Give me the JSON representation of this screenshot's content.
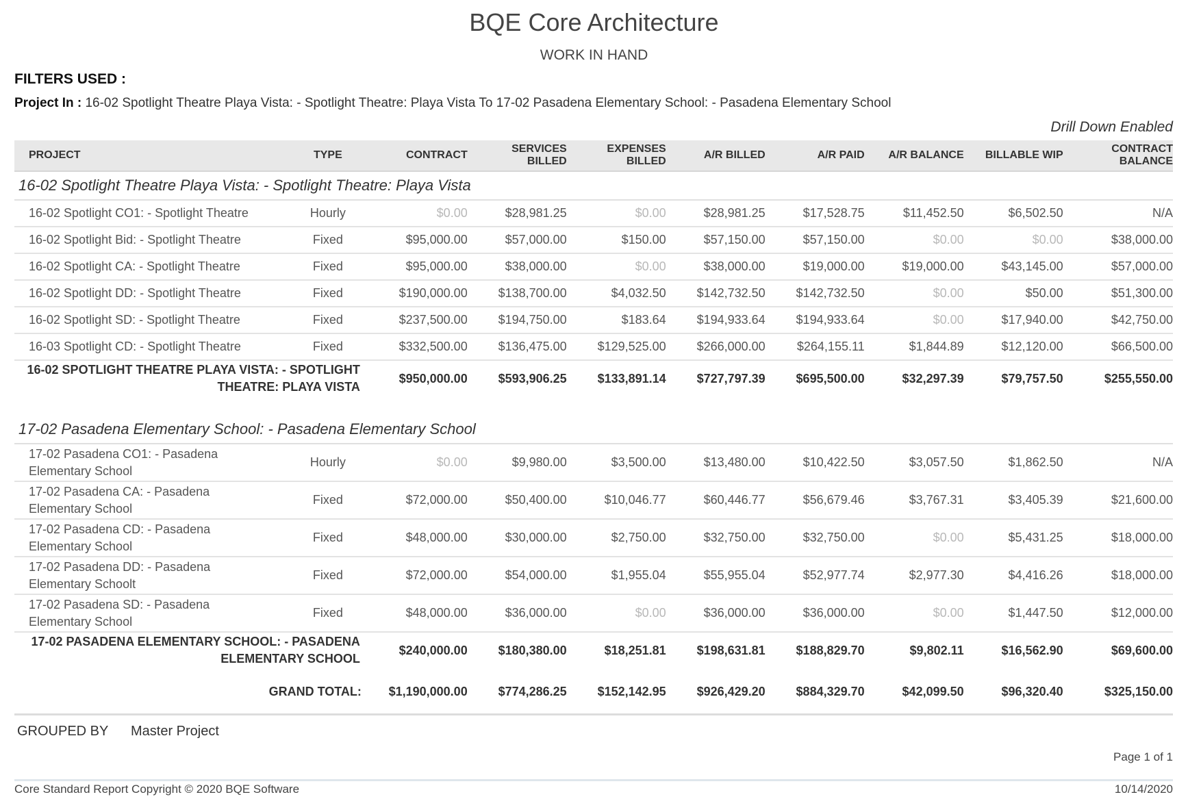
{
  "report": {
    "company": "BQE Core Architecture",
    "title": "WORK IN HAND",
    "filters_heading": "FILTERS USED :",
    "filter_label": "Project In :",
    "filter_value": " 16-02 Spotlight Theatre Playa Vista: - Spotlight Theatre: Playa Vista To 17-02 Pasadena Elementary School: - Pasadena Elementary School",
    "drill_down": "Drill Down Enabled"
  },
  "columns": {
    "project": "PROJECT",
    "type": "TYPE",
    "contract": "CONTRACT",
    "services_billed_1": "SERVICES",
    "services_billed_2": "BILLED",
    "expenses_billed_1": "EXPENSES",
    "expenses_billed_2": "BILLED",
    "ar_billed": "A/R BILLED",
    "ar_paid": "A/R PAID",
    "ar_balance": "A/R BALANCE",
    "billable_wip": "BILLABLE WIP",
    "contract_balance_1": "CONTRACT",
    "contract_balance_2": "BALANCE"
  },
  "groups": [
    {
      "name": "16-02 Spotlight Theatre Playa Vista: - Spotlight Theatre: Playa Vista",
      "rows": [
        {
          "project": "16-02 Spotlight CO1: - Spotlight Theatre",
          "type": "Hourly",
          "contract": "$0.00",
          "services_billed": "$28,981.25",
          "expenses_billed": "$0.00",
          "ar_billed": "$28,981.25",
          "ar_paid": "$17,528.75",
          "ar_balance": "$11,452.50",
          "billable_wip": "$6,502.50",
          "contract_balance": "N/A"
        },
        {
          "project": "16-02 Spotlight Bid: - Spotlight Theatre",
          "type": "Fixed",
          "contract": "$95,000.00",
          "services_billed": "$57,000.00",
          "expenses_billed": "$150.00",
          "ar_billed": "$57,150.00",
          "ar_paid": "$57,150.00",
          "ar_balance": "$0.00",
          "billable_wip": "$0.00",
          "contract_balance": "$38,000.00"
        },
        {
          "project": "16-02 Spotlight CA: - Spotlight Theatre",
          "type": "Fixed",
          "contract": "$95,000.00",
          "services_billed": "$38,000.00",
          "expenses_billed": "$0.00",
          "ar_billed": "$38,000.00",
          "ar_paid": "$19,000.00",
          "ar_balance": "$19,000.00",
          "billable_wip": "$43,145.00",
          "contract_balance": "$57,000.00"
        },
        {
          "project": "16-02 Spotlight DD: - Spotlight Theatre",
          "type": "Fixed",
          "contract": "$190,000.00",
          "services_billed": "$138,700.00",
          "expenses_billed": "$4,032.50",
          "ar_billed": "$142,732.50",
          "ar_paid": "$142,732.50",
          "ar_balance": "$0.00",
          "billable_wip": "$50.00",
          "contract_balance": "$51,300.00"
        },
        {
          "project": "16-02 Spotlight SD: - Spotlight Theatre",
          "type": "Fixed",
          "contract": "$237,500.00",
          "services_billed": "$194,750.00",
          "expenses_billed": "$183.64",
          "ar_billed": "$194,933.64",
          "ar_paid": "$194,933.64",
          "ar_balance": "$0.00",
          "billable_wip": "$17,940.00",
          "contract_balance": "$42,750.00"
        },
        {
          "project": "16-03 Spotlight CD: - Spotlight Theatre",
          "type": "Fixed",
          "contract": "$332,500.00",
          "services_billed": "$136,475.00",
          "expenses_billed": "$129,525.00",
          "ar_billed": "$266,000.00",
          "ar_paid": "$264,155.11",
          "ar_balance": "$1,844.89",
          "billable_wip": "$12,120.00",
          "contract_balance": "$66,500.00"
        }
      ],
      "subtotal": {
        "label_1": "16-02 SPOTLIGHT THEATRE PLAYA VISTA: - SPOTLIGHT",
        "label_2": "THEATRE: PLAYA VISTA",
        "contract": "$950,000.00",
        "services_billed": "$593,906.25",
        "expenses_billed": "$133,891.14",
        "ar_billed": "$727,797.39",
        "ar_paid": "$695,500.00",
        "ar_balance": "$32,297.39",
        "billable_wip": "$79,757.50",
        "contract_balance": "$255,550.00"
      }
    },
    {
      "name": "17-02 Pasadena Elementary School: - Pasadena Elementary School",
      "rows": [
        {
          "project_1": "17-02 Pasadena CO1: - Pasadena",
          "project_2": "Elementary School",
          "type": "Hourly",
          "contract": "$0.00",
          "services_billed": "$9,980.00",
          "expenses_billed": "$3,500.00",
          "ar_billed": "$13,480.00",
          "ar_paid": "$10,422.50",
          "ar_balance": "$3,057.50",
          "billable_wip": "$1,862.50",
          "contract_balance": "N/A"
        },
        {
          "project_1": "17-02 Pasadena CA: - Pasadena",
          "project_2": "Elementary School",
          "type": "Fixed",
          "contract": "$72,000.00",
          "services_billed": "$50,400.00",
          "expenses_billed": "$10,046.77",
          "ar_billed": "$60,446.77",
          "ar_paid": "$56,679.46",
          "ar_balance": "$3,767.31",
          "billable_wip": "$3,405.39",
          "contract_balance": "$21,600.00"
        },
        {
          "project_1": "17-02 Pasadena CD: - Pasadena",
          "project_2": "Elementary School",
          "type": "Fixed",
          "contract": "$48,000.00",
          "services_billed": "$30,000.00",
          "expenses_billed": "$2,750.00",
          "ar_billed": "$32,750.00",
          "ar_paid": "$32,750.00",
          "ar_balance": "$0.00",
          "billable_wip": "$5,431.25",
          "contract_balance": "$18,000.00"
        },
        {
          "project_1": "17-02 Pasadena DD: - Pasadena",
          "project_2": "Elementary Schoolt",
          "type": "Fixed",
          "contract": "$72,000.00",
          "services_billed": "$54,000.00",
          "expenses_billed": "$1,955.04",
          "ar_billed": "$55,955.04",
          "ar_paid": "$52,977.74",
          "ar_balance": "$2,977.30",
          "billable_wip": "$4,416.26",
          "contract_balance": "$18,000.00"
        },
        {
          "project_1": "17-02 Pasadena SD: - Pasadena",
          "project_2": "Elementary School",
          "type": "Fixed",
          "contract": "$48,000.00",
          "services_billed": "$36,000.00",
          "expenses_billed": "$0.00",
          "ar_billed": "$36,000.00",
          "ar_paid": "$36,000.00",
          "ar_balance": "$0.00",
          "billable_wip": "$1,447.50",
          "contract_balance": "$12,000.00"
        }
      ],
      "subtotal": {
        "label_1": "17-02 PASADENA ELEMENTARY SCHOOL: - PASADENA",
        "label_2": "ELEMENTARY SCHOOL",
        "contract": "$240,000.00",
        "services_billed": "$180,380.00",
        "expenses_billed": "$18,251.81",
        "ar_billed": "$198,631.81",
        "ar_paid": "$188,829.70",
        "ar_balance": "$9,802.11",
        "billable_wip": "$16,562.90",
        "contract_balance": "$69,600.00"
      }
    }
  ],
  "grand_total": {
    "label": "GRAND TOTAL:",
    "contract": "$1,190,000.00",
    "services_billed": "$774,286.25",
    "expenses_billed": "$152,142.95",
    "ar_billed": "$926,429.20",
    "ar_paid": "$884,329.70",
    "ar_balance": "$42,099.50",
    "billable_wip": "$96,320.40",
    "contract_balance": "$325,150.00"
  },
  "footer": {
    "grouped_by_label": "GROUPED BY",
    "grouped_by_value": "Master Project",
    "page": "Page 1 of 1",
    "copyright": "Core Standard Report Copyright © 2020 BQE Software",
    "date": "10/14/2020"
  },
  "colors": {
    "header_bg": "#e8e8e8",
    "zero_value": "#b8b8b8",
    "text": "#333333"
  }
}
